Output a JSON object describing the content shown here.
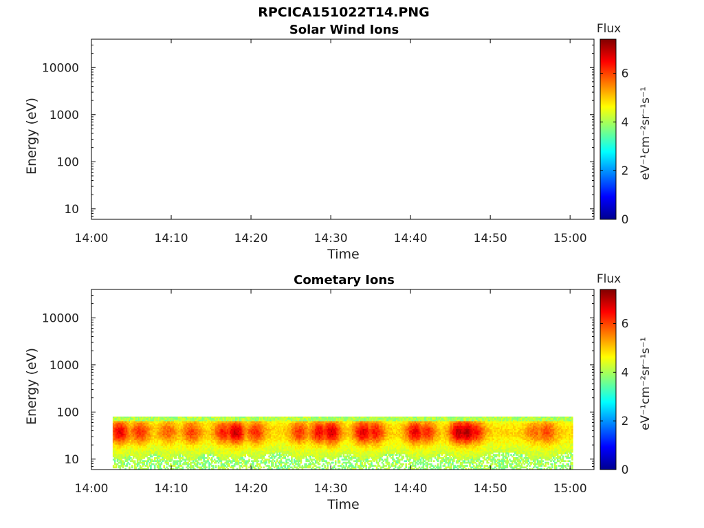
{
  "figure_title": "RPCICA151022T14.PNG",
  "chart_data": [
    {
      "type": "heatmap",
      "title": "Solar Wind Ions",
      "xlabel": "Time",
      "ylabel": "Energy (eV)",
      "y_scale": "log",
      "ylim": [
        6,
        40000
      ],
      "xlim": [
        "14:00",
        "15:03"
      ],
      "x_ticks": [
        "14:00",
        "14:10",
        "14:20",
        "14:30",
        "14:40",
        "14:50",
        "15:00"
      ],
      "y_ticks": [
        "10",
        "100",
        "1000",
        "10000"
      ],
      "colorbar": {
        "title": "Flux",
        "label": "eV⁻¹cm⁻²sr⁻¹s⁻¹",
        "range": [
          0,
          7.4
        ],
        "ticks": [
          "0",
          "2",
          "4",
          "6"
        ],
        "colormap": "jet"
      },
      "data_present": false,
      "time_range": [],
      "energy_range": []
    },
    {
      "type": "heatmap",
      "title": "Cometary Ions",
      "xlabel": "Time",
      "ylabel": "Energy (eV)",
      "y_scale": "log",
      "ylim": [
        6,
        40000
      ],
      "xlim": [
        "14:00",
        "15:03"
      ],
      "x_ticks": [
        "14:00",
        "14:10",
        "14:20",
        "14:30",
        "14:40",
        "14:50",
        "15:00"
      ],
      "y_ticks": [
        "10",
        "100",
        "1000",
        "10000"
      ],
      "colorbar": {
        "title": "Flux",
        "label": "eV⁻¹cm⁻²sr⁻¹s⁻¹",
        "range": [
          0,
          7.4
        ],
        "ticks": [
          "0",
          "2",
          "4",
          "6"
        ],
        "colormap": "jet"
      },
      "data_present": true,
      "time_range": [
        "14:02:40",
        "15:00:20"
      ],
      "energy_range": [
        6,
        80
      ],
      "flux_peak_times": [
        "14:03:30",
        "14:06:00",
        "14:09:30",
        "14:12:30",
        "14:16:30",
        "14:18:00",
        "14:20:30",
        "14:26:00",
        "14:28:30",
        "14:30:00",
        "14:34:00",
        "14:35:30",
        "14:40:30",
        "14:42:00",
        "14:46:00",
        "14:47:00",
        "14:48:00",
        "14:55:30",
        "14:57:00"
      ],
      "flux_peak_values": [
        6.6,
        6.2,
        5.8,
        6.0,
        6.3,
        6.9,
        6.2,
        6.1,
        6.5,
        6.8,
        6.7,
        6.4,
        6.6,
        6.2,
        7.0,
        7.1,
        6.5,
        5.7,
        6.0
      ]
    }
  ]
}
